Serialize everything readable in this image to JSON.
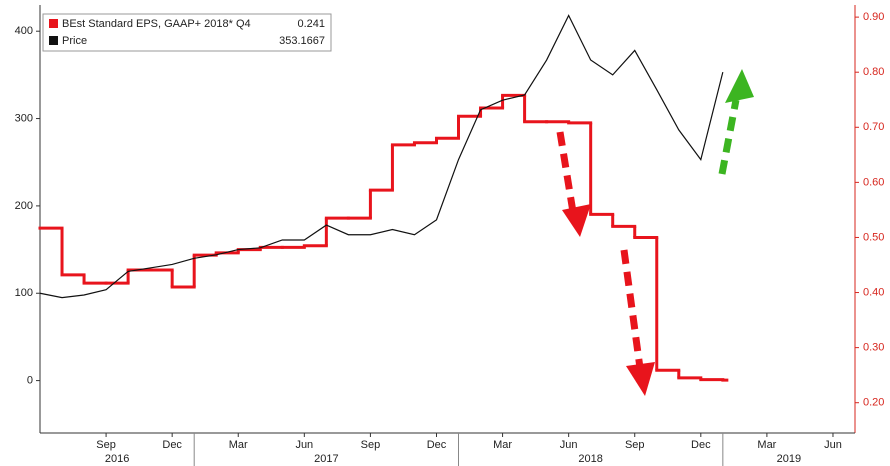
{
  "chart_data": {
    "type": "line",
    "x": [
      "2016-06",
      "2016-07",
      "2016-08",
      "2016-09",
      "2016-10",
      "2016-11",
      "2016-12",
      "2017-01",
      "2017-02",
      "2017-03",
      "2017-04",
      "2017-05",
      "2017-06",
      "2017-07",
      "2017-08",
      "2017-09",
      "2017-10",
      "2017-11",
      "2017-12",
      "2018-01",
      "2018-02",
      "2018-03",
      "2018-04",
      "2018-05",
      "2018-06",
      "2018-07",
      "2018-08",
      "2018-09",
      "2018-10",
      "2018-11",
      "2018-12",
      "2019-01"
    ],
    "xlim": [
      "2016-06",
      "2019-07"
    ],
    "xticks": [
      {
        "value": "2016-09",
        "label": "Sep"
      },
      {
        "value": "2016-12",
        "label": "Dec"
      },
      {
        "value": "2017-03",
        "label": "Mar"
      },
      {
        "value": "2017-06",
        "label": "Jun"
      },
      {
        "value": "2017-09",
        "label": "Sep"
      },
      {
        "value": "2017-12",
        "label": "Dec"
      },
      {
        "value": "2018-03",
        "label": "Mar"
      },
      {
        "value": "2018-06",
        "label": "Jun"
      },
      {
        "value": "2018-09",
        "label": "Sep"
      },
      {
        "value": "2018-12",
        "label": "Dec"
      },
      {
        "value": "2019-03",
        "label": "Mar"
      },
      {
        "value": "2019-06",
        "label": "Jun"
      }
    ],
    "xgroups": [
      {
        "label": "2016",
        "start": "2016-06",
        "end": "2017-01"
      },
      {
        "label": "2017",
        "start": "2017-01",
        "end": "2018-01"
      },
      {
        "label": "2018",
        "start": "2018-01",
        "end": "2019-01"
      },
      {
        "label": "2019",
        "start": "2019-01",
        "end": "2019-07"
      }
    ],
    "ylim": [
      -60,
      430
    ],
    "yticks": [
      0,
      100,
      200,
      300,
      400
    ],
    "y2lim": [
      0.145,
      0.922
    ],
    "y2ticks": [
      {
        "value": 0.2,
        "label": "0.20"
      },
      {
        "value": 0.3,
        "label": "0.30"
      },
      {
        "value": 0.4,
        "label": "0.40"
      },
      {
        "value": 0.5,
        "label": "0.50"
      },
      {
        "value": 0.6,
        "label": "0.60"
      },
      {
        "value": 0.7,
        "label": "0.70"
      },
      {
        "value": 0.8,
        "label": "0.80"
      },
      {
        "value": 0.9,
        "label": "0.90"
      }
    ],
    "y2color": "#d7261e",
    "grid": false,
    "legend": "top-left",
    "series": [
      {
        "name": "BEst Standard EPS, GAAP+ 2018* Q4",
        "color": "#e8141c",
        "axis": "y2",
        "step": true,
        "values": [
          0.517,
          0.432,
          0.417,
          0.417,
          0.441,
          0.441,
          0.41,
          0.468,
          0.472,
          0.478,
          0.482,
          0.482,
          0.485,
          0.535,
          0.535,
          0.586,
          0.668,
          0.672,
          0.68,
          0.72,
          0.735,
          0.758,
          0.71,
          0.71,
          0.708,
          0.542,
          0.52,
          0.5,
          0.259,
          0.245,
          0.242,
          0.241
        ]
      },
      {
        "name": "Price",
        "color": "#111111",
        "values": [
          100,
          95,
          98,
          104,
          125,
          129,
          133,
          140,
          144,
          150,
          152,
          161,
          161,
          178,
          167,
          167,
          173,
          167,
          184,
          253,
          310,
          321,
          327,
          367,
          418,
          367,
          350,
          378,
          333,
          287,
          253,
          353.1667
        ]
      }
    ]
  }
}
